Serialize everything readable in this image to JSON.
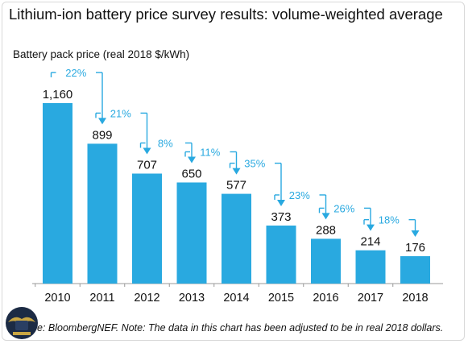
{
  "chart_data": {
    "type": "bar",
    "title": "Lithium-ion battery price survey results: volume-weighted average",
    "ylabel": "Battery pack price (real 2018 $/kWh)",
    "xlabel": "",
    "categories": [
      "2010",
      "2011",
      "2012",
      "2013",
      "2014",
      "2015",
      "2016",
      "2017",
      "2018"
    ],
    "values": [
      1160,
      899,
      707,
      650,
      577,
      373,
      288,
      214,
      176
    ],
    "value_labels": [
      "1,160",
      "899",
      "707",
      "650",
      "577",
      "373",
      "288",
      "214",
      "176"
    ],
    "declines": [
      "22%",
      "21%",
      "8%",
      "11%",
      "35%",
      "23%",
      "26%",
      "18%"
    ],
    "ylim": [
      0,
      1160
    ],
    "grid": false,
    "legend": "none",
    "bar_color": "#29a9e0",
    "annotation_color": "#29a9e0"
  },
  "source_note": "e: BloombergNEF. Note: The data in this chart has been adjusted to be in real 2018 dollars."
}
